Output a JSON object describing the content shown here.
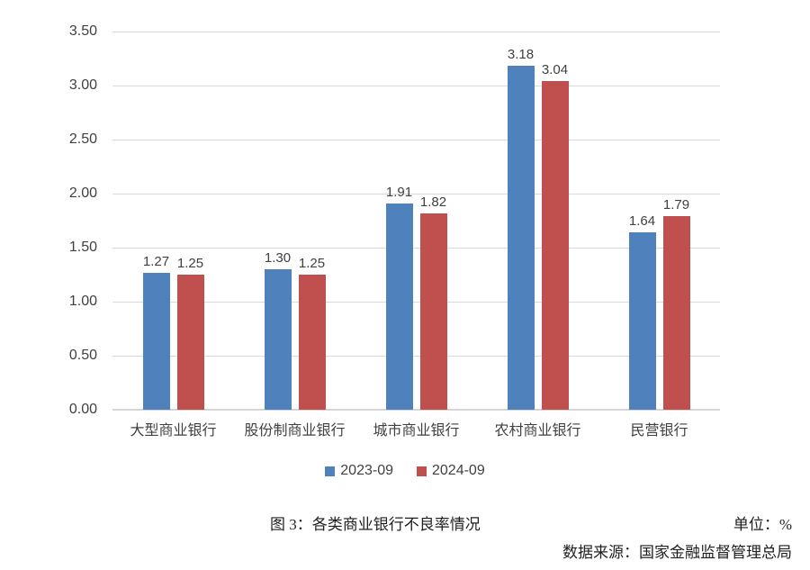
{
  "chart_data": {
    "type": "bar",
    "categories": [
      "大型商业银行",
      "股份制商业银行",
      "城市商业银行",
      "农村商业银行",
      "民营银行"
    ],
    "series": [
      {
        "name": "2023-09",
        "color": "#4f81bd",
        "values": [
          1.27,
          1.3,
          1.91,
          3.18,
          1.64
        ]
      },
      {
        "name": "2024-09",
        "color": "#c0504d",
        "values": [
          1.25,
          1.25,
          1.82,
          3.04,
          1.79
        ]
      }
    ],
    "value_labels": [
      [
        "1.27",
        "1.30",
        "1.91",
        "3.18",
        "1.64"
      ],
      [
        "1.25",
        "1.25",
        "1.82",
        "3.04",
        "1.79"
      ]
    ],
    "ylim": [
      0,
      3.5
    ],
    "ytick_labels": [
      "0.00",
      "0.50",
      "1.00",
      "1.50",
      "2.00",
      "2.50",
      "3.00",
      "3.50"
    ],
    "grid": true,
    "legend_position": "bottom"
  },
  "caption": {
    "title": "图 3：各类商业银行不良率情况",
    "unit": "单位：%",
    "source": "数据来源：国家金融监督管理总局"
  },
  "colors": {
    "grid": "#d9d9d9",
    "axis_text": "#404040",
    "series_2023": "#4f81bd",
    "series_2024": "#c0504d"
  }
}
